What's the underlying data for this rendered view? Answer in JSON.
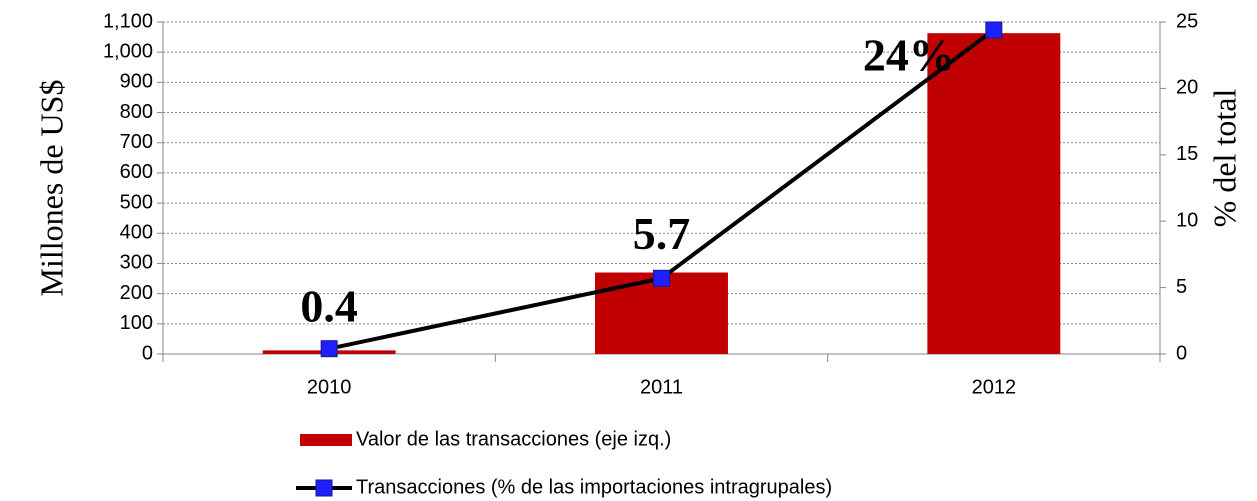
{
  "chart_data": {
    "type": "bar-line",
    "categories": [
      "2010",
      "2011",
      "2012"
    ],
    "series": [
      {
        "name": "Valor de las transacciones (eje izq.)",
        "type": "bar",
        "color": "#c00000",
        "values": [
          12,
          270,
          1063
        ]
      },
      {
        "name": "Transacciones (% de las importaciones intragrupales)",
        "type": "line",
        "axis": "y2",
        "color": "#000000",
        "marker_color": "#1f1fff",
        "values": [
          0.4,
          5.7,
          24.4
        ],
        "value_labels": [
          "0.4",
          "5.7",
          "24%"
        ]
      }
    ],
    "ylabel": "Millones de US$",
    "y2label": "% del total",
    "ylim": [
      0,
      1100
    ],
    "yticks": [
      0,
      100,
      200,
      300,
      400,
      500,
      600,
      700,
      800,
      900,
      {
        "value": 1000,
        "label": "1,000"
      },
      {
        "value": 1100,
        "label": "1,100"
      }
    ],
    "y2lim": [
      0,
      25
    ],
    "y2ticks": [
      0,
      5,
      10,
      15,
      20,
      25
    ],
    "grid": true
  }
}
